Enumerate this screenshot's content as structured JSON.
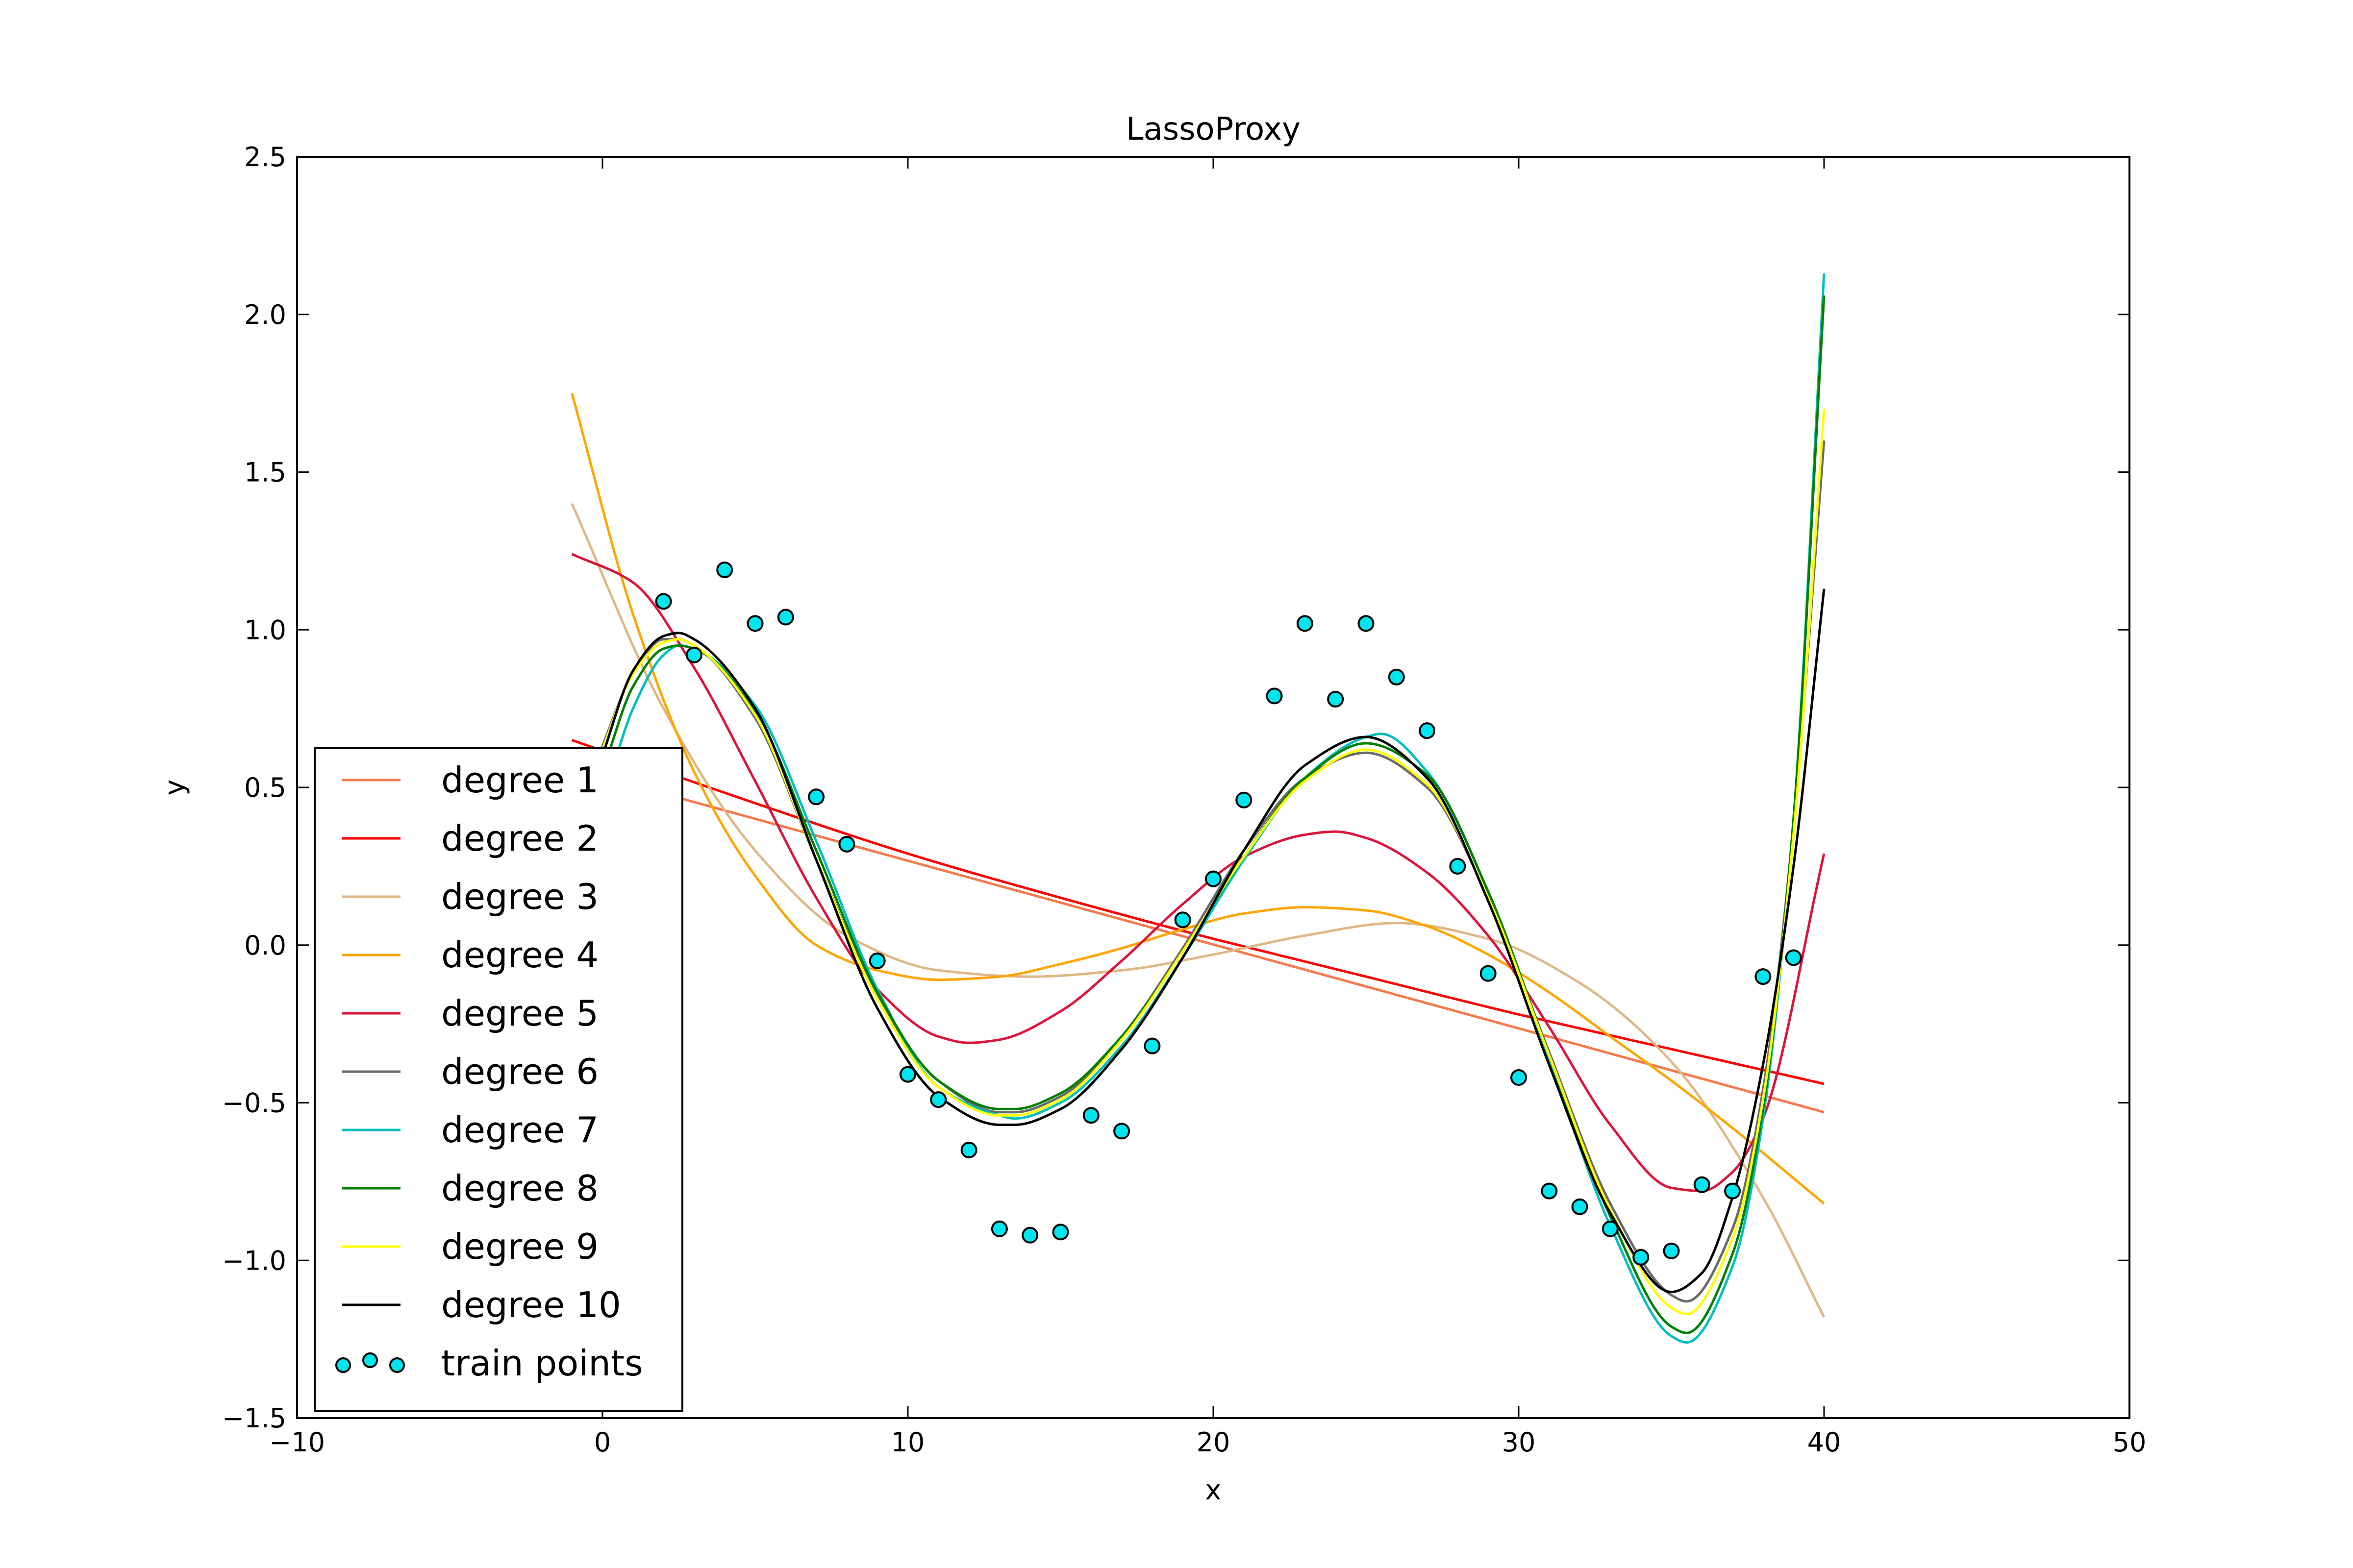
{
  "chart_data": {
    "type": "line",
    "title": "LassoProxy",
    "xlabel": "x",
    "ylabel": "y",
    "xlim": [
      -10,
      50
    ],
    "ylim": [
      -1.5,
      2.5
    ],
    "xticks": [
      -10,
      0,
      10,
      20,
      30,
      40,
      50
    ],
    "xtick_labels": [
      "−10",
      "0",
      "10",
      "20",
      "30",
      "40",
      "50"
    ],
    "yticks": [
      -1.5,
      -1.0,
      -0.5,
      0.0,
      0.5,
      1.0,
      1.5,
      2.0,
      2.5
    ],
    "ytick_labels": [
      "−1.5",
      "−1.0",
      "−0.5",
      "0.0",
      "0.5",
      "1.0",
      "1.5",
      "2.0",
      "2.5"
    ],
    "grid": false,
    "legend_position": "lower-left",
    "series": [
      {
        "name": "degree 1",
        "color": "#f47a4d",
        "x": [
          -1,
          40
        ],
        "y": [
          0.56,
          -0.53
        ]
      },
      {
        "name": "degree 2",
        "color": "#ff0000",
        "x": [
          -1,
          5,
          10,
          15,
          20,
          25,
          30,
          35,
          40
        ],
        "y": [
          0.65,
          0.45,
          0.29,
          0.15,
          0.02,
          -0.1,
          -0.22,
          -0.33,
          -0.44
        ]
      },
      {
        "name": "degree 3",
        "color": "#deb887",
        "x": [
          -1,
          2,
          5,
          8,
          11,
          14,
          17,
          20,
          23,
          26,
          29,
          32,
          35,
          38,
          40
        ],
        "y": [
          1.4,
          0.75,
          0.3,
          0.03,
          -0.08,
          -0.1,
          -0.08,
          -0.03,
          0.03,
          0.07,
          0.02,
          -0.12,
          -0.37,
          -0.8,
          -1.18
        ]
      },
      {
        "name": "degree 4",
        "color": "#ffa500",
        "x": [
          -1,
          1,
          3,
          5,
          7,
          9,
          11,
          13,
          15,
          17,
          19,
          21,
          23,
          25,
          27,
          29,
          31,
          33,
          35,
          37,
          40
        ],
        "y": [
          1.75,
          1.05,
          0.55,
          0.22,
          0.0,
          -0.08,
          -0.11,
          -0.1,
          -0.06,
          -0.01,
          0.05,
          0.1,
          0.12,
          0.11,
          0.06,
          -0.03,
          -0.15,
          -0.29,
          -0.43,
          -0.58,
          -0.82
        ]
      },
      {
        "name": "degree 5",
        "color": "#dc143c",
        "x": [
          -1,
          1,
          3,
          5,
          7,
          9,
          11,
          12,
          13,
          15,
          17,
          19,
          21,
          23,
          24,
          25,
          27,
          29,
          31,
          33,
          35,
          36,
          37,
          38,
          40
        ],
        "y": [
          1.24,
          1.15,
          0.88,
          0.52,
          0.15,
          -0.14,
          -0.29,
          -0.31,
          -0.3,
          -0.21,
          -0.05,
          0.13,
          0.28,
          0.35,
          0.36,
          0.34,
          0.23,
          0.03,
          -0.26,
          -0.57,
          -0.77,
          -0.78,
          -0.72,
          -0.55,
          0.29
        ]
      },
      {
        "name": "degree 6",
        "color": "#696969",
        "x": [
          -1,
          0,
          1,
          2,
          2.5,
          3,
          5,
          7,
          9,
          11,
          13,
          13.5,
          15,
          17,
          19,
          21,
          23,
          25,
          27,
          29,
          31,
          33,
          35,
          35.5,
          37,
          38,
          39,
          40
        ],
        "y": [
          0.35,
          0.63,
          0.86,
          0.97,
          0.97,
          0.95,
          0.72,
          0.27,
          -0.16,
          -0.43,
          -0.53,
          -0.53,
          -0.48,
          -0.29,
          -0.01,
          0.3,
          0.53,
          0.61,
          0.5,
          0.15,
          -0.34,
          -0.82,
          -1.11,
          -1.13,
          -0.9,
          -0.46,
          0.38,
          1.6
        ]
      },
      {
        "name": "degree 7",
        "color": "#00bfbf",
        "x": [
          -1,
          0,
          1,
          2,
          2.5,
          3,
          5,
          7,
          9,
          11,
          13,
          13.5,
          15,
          17,
          19,
          21,
          23,
          25,
          25.5,
          27,
          29,
          31,
          33,
          35,
          35.5,
          37,
          38,
          39,
          40
        ],
        "y": [
          0.15,
          0.45,
          0.75,
          0.92,
          0.95,
          0.94,
          0.76,
          0.33,
          -0.14,
          -0.45,
          -0.54,
          -0.55,
          -0.5,
          -0.32,
          -0.04,
          0.27,
          0.53,
          0.66,
          0.67,
          0.55,
          0.17,
          -0.36,
          -0.89,
          -1.24,
          -1.26,
          -1.02,
          -0.55,
          0.4,
          2.13
        ]
      },
      {
        "name": "degree 8",
        "color": "#007f00",
        "x": [
          -1,
          0,
          1,
          2,
          2.5,
          3,
          5,
          7,
          9,
          11,
          13,
          13.5,
          15,
          17,
          19,
          21,
          23,
          25,
          27,
          29,
          31,
          33,
          35,
          35.5,
          37,
          38,
          39,
          40
        ],
        "y": [
          0.3,
          0.55,
          0.82,
          0.94,
          0.95,
          0.94,
          0.74,
          0.3,
          -0.15,
          -0.43,
          -0.52,
          -0.52,
          -0.47,
          -0.29,
          -0.02,
          0.28,
          0.53,
          0.64,
          0.54,
          0.17,
          -0.35,
          -0.86,
          -1.21,
          -1.23,
          -0.98,
          -0.52,
          0.4,
          2.06
        ]
      },
      {
        "name": "degree 9",
        "color": "#ffff00",
        "x": [
          -1,
          0,
          1,
          2,
          2.5,
          3,
          5,
          7,
          9,
          11,
          13,
          13.5,
          15,
          17,
          19,
          21,
          23,
          25,
          27,
          29,
          31,
          33,
          35,
          35.5,
          37,
          38,
          39,
          40
        ],
        "y": [
          0.35,
          0.62,
          0.86,
          0.96,
          0.97,
          0.95,
          0.73,
          0.27,
          -0.17,
          -0.45,
          -0.54,
          -0.54,
          -0.49,
          -0.3,
          -0.02,
          0.28,
          0.52,
          0.62,
          0.51,
          0.15,
          -0.35,
          -0.84,
          -1.15,
          -1.17,
          -0.93,
          -0.49,
          0.35,
          1.7
        ]
      },
      {
        "name": "degree 10",
        "color": "#000000",
        "x": [
          -1,
          0,
          1,
          2,
          2.5,
          3,
          5,
          7,
          9,
          11,
          13,
          13.5,
          15,
          17,
          19,
          21,
          23,
          25,
          27,
          29,
          31,
          33,
          35,
          36,
          37,
          38,
          39,
          40
        ],
        "y": [
          0.3,
          0.6,
          0.87,
          0.98,
          0.99,
          0.97,
          0.75,
          0.27,
          -0.2,
          -0.48,
          -0.57,
          -0.57,
          -0.52,
          -0.33,
          -0.04,
          0.3,
          0.57,
          0.66,
          0.53,
          0.14,
          -0.38,
          -0.85,
          -1.1,
          -1.04,
          -0.8,
          -0.38,
          0.25,
          1.13
        ]
      }
    ],
    "scatter": {
      "name": "train points",
      "color": "#00e5ee",
      "edge_color": "#000000",
      "x": [
        2,
        3,
        4,
        5,
        6,
        7,
        8,
        9,
        10,
        11,
        12,
        13,
        14,
        15,
        16,
        17,
        18,
        19,
        20,
        21,
        22,
        23,
        24,
        25,
        26,
        27,
        28,
        29,
        30,
        31,
        32,
        33,
        34,
        35,
        36,
        37,
        38,
        39
      ],
      "y": [
        1.09,
        0.92,
        1.19,
        1.02,
        1.04,
        0.47,
        0.32,
        -0.05,
        -0.41,
        -0.49,
        -0.65,
        -0.9,
        -0.92,
        -0.91,
        -0.54,
        -0.59,
        -0.32,
        0.08,
        0.21,
        0.46,
        0.79,
        1.02,
        0.78,
        1.02,
        0.85,
        0.68,
        0.25,
        -0.09,
        -0.42,
        -0.78,
        -0.83,
        -0.9,
        -0.99,
        -0.97,
        -0.76,
        -0.78,
        -0.1,
        -0.04
      ]
    }
  }
}
